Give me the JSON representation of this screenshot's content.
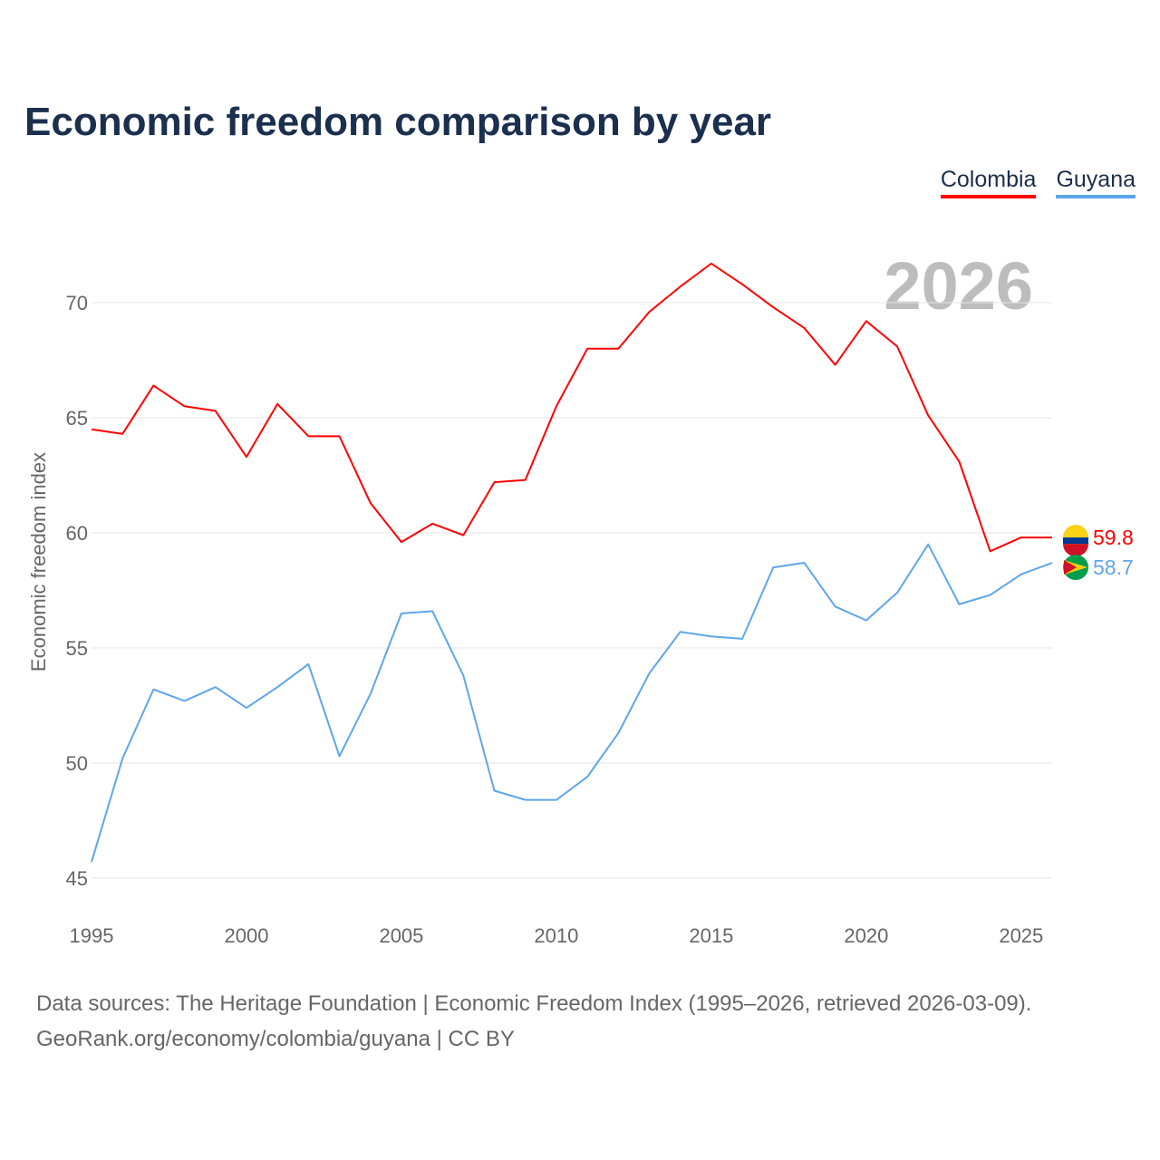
{
  "chart_data": {
    "type": "line",
    "title": "Economic freedom comparison by year",
    "xlabel": "",
    "ylabel": "Economic freedom index",
    "xlim": [
      1995,
      2026
    ],
    "ylim": [
      45,
      72
    ],
    "yticks": [
      45,
      50,
      55,
      60,
      65,
      70
    ],
    "xticks": [
      1995,
      2000,
      2005,
      2010,
      2015,
      2020,
      2025
    ],
    "grid": true,
    "legend_position": "top-right",
    "year_watermark": "2026",
    "x": [
      1995,
      1996,
      1997,
      1998,
      1999,
      2000,
      2001,
      2002,
      2003,
      2004,
      2005,
      2006,
      2007,
      2008,
      2009,
      2010,
      2011,
      2012,
      2013,
      2014,
      2015,
      2016,
      2017,
      2018,
      2019,
      2020,
      2021,
      2022,
      2023,
      2024,
      2025,
      2026
    ],
    "series": [
      {
        "name": "Colombia",
        "color": "#ff0000",
        "end_label": "59.8",
        "values": [
          64.5,
          64.3,
          66.4,
          65.5,
          65.3,
          63.3,
          65.6,
          64.2,
          64.2,
          61.3,
          59.6,
          60.4,
          59.9,
          62.2,
          62.3,
          65.5,
          68.0,
          68.0,
          69.6,
          70.7,
          71.7,
          70.8,
          69.8,
          68.9,
          67.3,
          69.2,
          68.1,
          65.1,
          63.1,
          59.2,
          59.8,
          59.8
        ]
      },
      {
        "name": "Guyana",
        "color": "#5ea6ea",
        "end_label": "58.7",
        "values": [
          45.7,
          50.2,
          53.2,
          52.7,
          53.3,
          52.4,
          53.3,
          54.3,
          50.3,
          53.0,
          56.5,
          56.6,
          53.8,
          48.8,
          48.4,
          48.4,
          49.4,
          51.3,
          53.9,
          55.7,
          55.5,
          55.4,
          58.5,
          58.7,
          56.8,
          56.2,
          57.4,
          59.5,
          56.9,
          57.3,
          58.2,
          58.7
        ]
      }
    ]
  },
  "source": {
    "line1": "Data sources: The Heritage Foundation | Economic Freedom Index (1995–2026, retrieved 2026-03-09).",
    "line2": "GeoRank.org/economy/colombia/guyana | CC BY"
  }
}
